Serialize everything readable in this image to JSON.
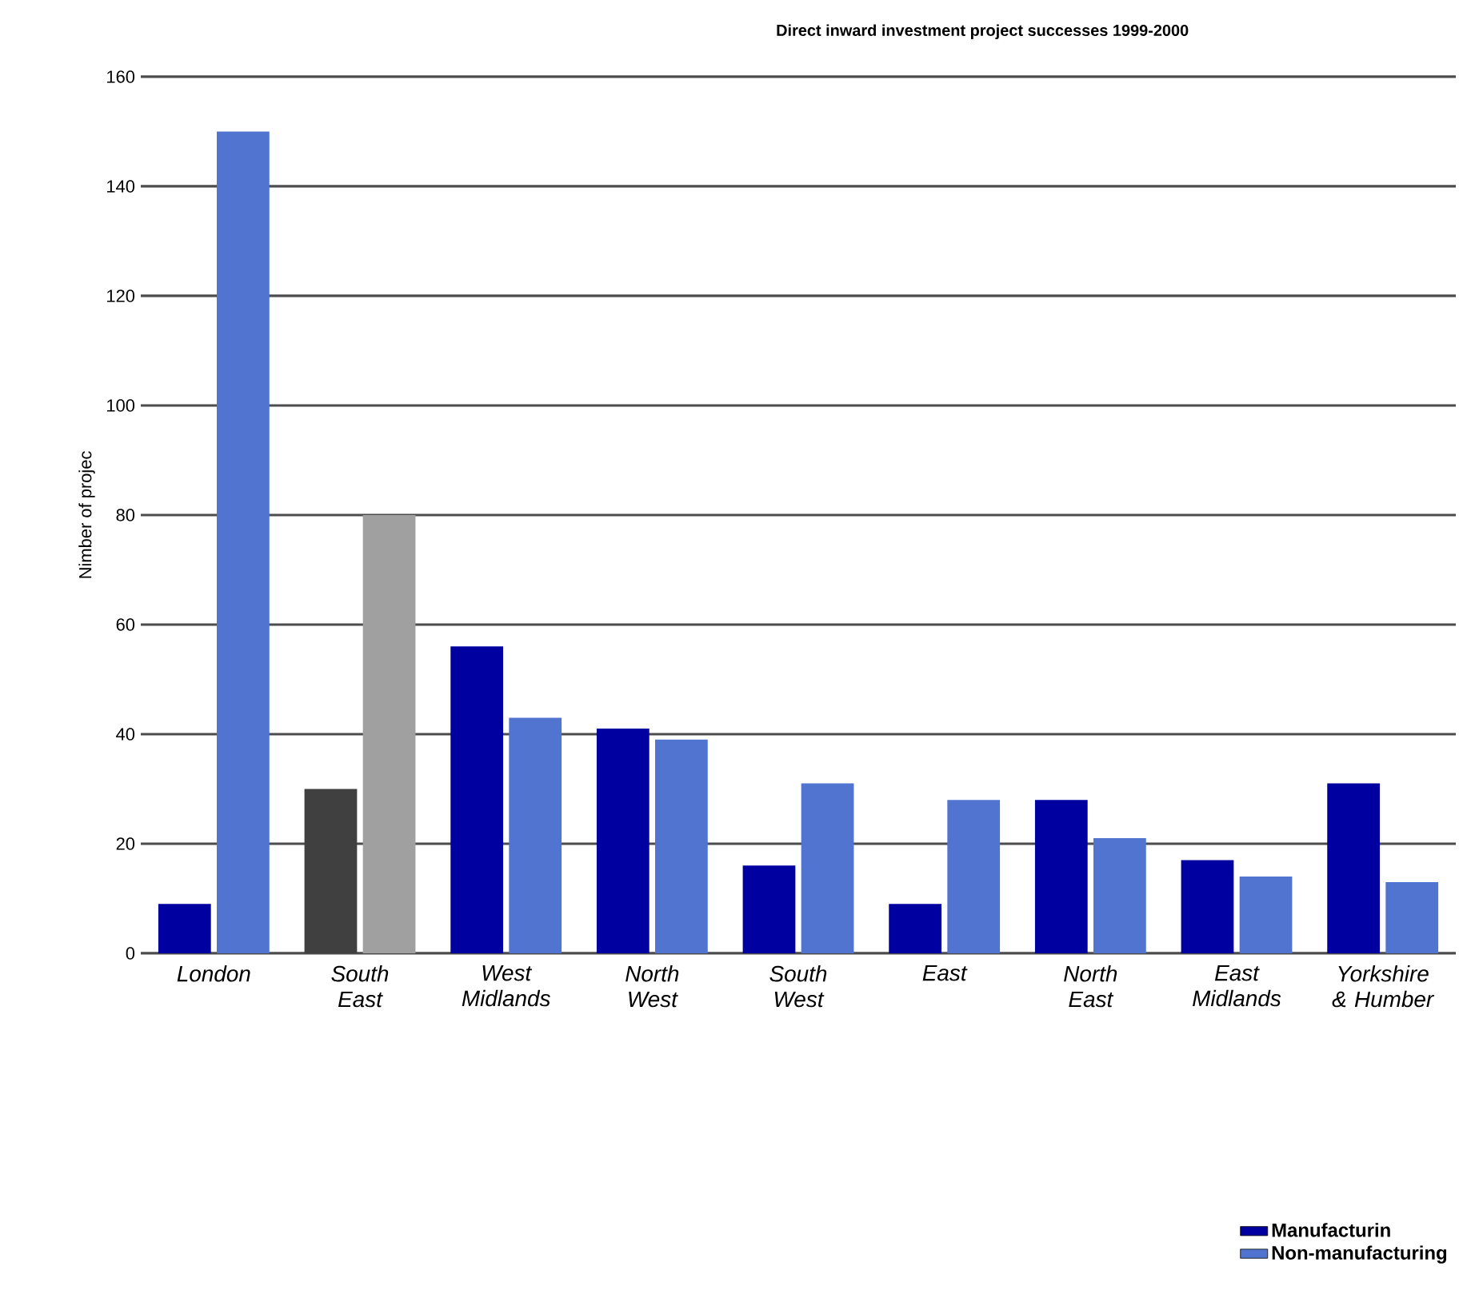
{
  "chart_data": {
    "type": "bar",
    "title": "Direct inward investment project successes 1999-2000",
    "ylabel": "Nimber of projec",
    "categories": [
      "London",
      "South East",
      "West Midlands",
      "North West",
      "South West",
      "East",
      "North East",
      "East Midlands",
      "Yorkshire & Humber"
    ],
    "series": [
      {
        "name": "Manufacturin",
        "color": "#0000a0",
        "colors": [
          "#0000a0",
          "#404040",
          "#0000a0",
          "#0000a0",
          "#0000a0",
          "#0000a0",
          "#0000a0",
          "#0000a0",
          "#0000a0"
        ],
        "values": [
          9,
          30,
          56,
          41,
          16,
          9,
          28,
          17,
          31
        ]
      },
      {
        "name": "Non-manufacturing",
        "color": "#5074d0",
        "colors": [
          "#5074d0",
          "#a0a0a0",
          "#5074d0",
          "#5074d0",
          "#5074d0",
          "#5074d0",
          "#5074d0",
          "#5074d0",
          "#5074d0"
        ],
        "values": [
          150,
          80,
          43,
          39,
          31,
          28,
          21,
          14,
          13
        ]
      }
    ],
    "ylim": [
      0,
      160
    ],
    "yticks": [
      0,
      20,
      40,
      60,
      80,
      100,
      120,
      140,
      160
    ],
    "grid": "y",
    "legend": "bottom right"
  }
}
